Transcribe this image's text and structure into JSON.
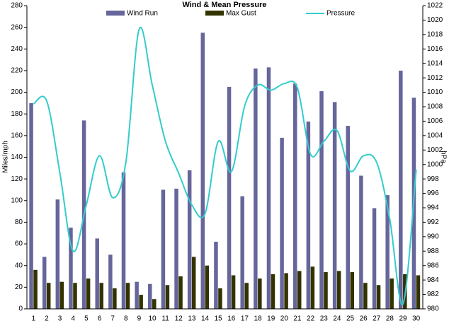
{
  "chart_data": {
    "type": "bar-line",
    "title": "Wind & Mean Pressure",
    "y_label": "Miles/mph",
    "y2_label": "hPa",
    "categories": [
      "1",
      "2",
      "3",
      "4",
      "5",
      "6",
      "7",
      "8",
      "9",
      "10",
      "11",
      "12",
      "13",
      "14",
      "15",
      "16",
      "17",
      "18",
      "19",
      "20",
      "21",
      "22",
      "23",
      "24",
      "25",
      "26",
      "27",
      "28",
      "29",
      "30"
    ],
    "series": [
      {
        "name": "Wind Run",
        "color": "#66669c",
        "kind": "bar",
        "values": [
          190,
          48,
          101,
          75,
          174,
          65,
          50,
          126,
          25,
          23,
          110,
          111,
          128,
          255,
          62,
          205,
          104,
          222,
          223,
          158,
          208,
          173,
          201,
          191,
          169,
          123,
          93,
          105,
          220,
          195
        ]
      },
      {
        "name": "Max Gust",
        "color": "#333300",
        "kind": "bar",
        "values": [
          36,
          24,
          25,
          24,
          28,
          24,
          19,
          24,
          13,
          9,
          22,
          30,
          48,
          40,
          19,
          31,
          24,
          28,
          32,
          33,
          35,
          39,
          34,
          35,
          34,
          24,
          22,
          28,
          32,
          31
        ]
      },
      {
        "name": "Pressure",
        "color": "#33cccc",
        "kind": "line",
        "axis": "y2",
        "values": [
          1008.4,
          1008.8,
          998.8,
          988,
          994.4,
          1001.2,
          995.4,
          1000.3,
          1018.7,
          1011,
          1003.2,
          998.8,
          994.4,
          993.2,
          1003.2,
          999,
          1008.1,
          1011,
          1010.3,
          1011.2,
          1010.6,
          1001.4,
          1003.2,
          1004.7,
          999.1,
          1001.2,
          1000.3,
          992.4,
          980.7,
          999.3
        ]
      }
    ],
    "ylim": [
      0,
      280
    ],
    "yticks": [
      0,
      20,
      40,
      60,
      80,
      100,
      120,
      140,
      160,
      180,
      200,
      220,
      240,
      260,
      280
    ],
    "y2lim": [
      980,
      1022
    ],
    "y2ticks": [
      980,
      982,
      984,
      986,
      988,
      990,
      992,
      994,
      996,
      998,
      1000,
      1002,
      1004,
      1006,
      1008,
      1010,
      1012,
      1014,
      1016,
      1018,
      1020,
      1022
    ]
  }
}
